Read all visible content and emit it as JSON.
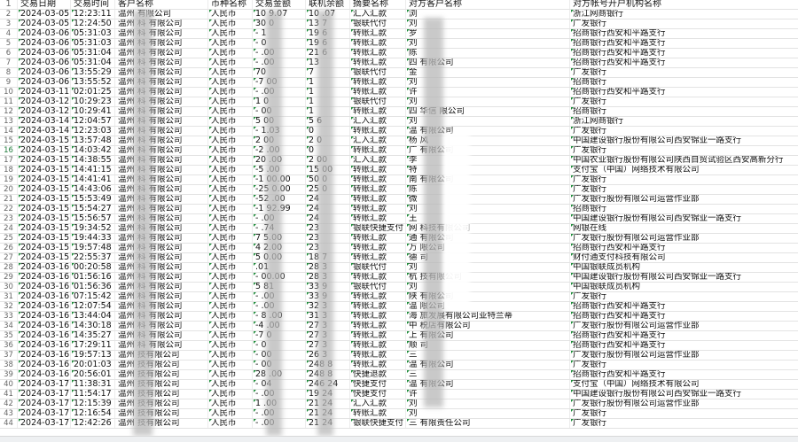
{
  "columns": [
    "",
    "交易日期",
    "交易时间",
    "客户名称",
    "币种名称",
    "交易金额",
    "联机余额",
    "摘要名称",
    "对方客户名称",
    "对方帐号开户机构名称"
  ],
  "header_row_number": "1",
  "selected_row": "16",
  "rows": [
    [
      "2",
      "2024-03-05",
      "12:23:11",
      "温州    有限公司",
      "人民币",
      "10   9.07",
      "10   .07",
      "汇入汇款",
      "浏",
      "浙江网商银行"
    ],
    [
      "3",
      "2024-03-05",
      "12:24:50",
      "温州   科 有限公司",
      "人民币",
      "30    0",
      "13   7",
      "银联代付",
      "刘",
      "广发银行"
    ],
    [
      "4",
      "2024-03-06",
      "05:31:03",
      "温州   科 有限公司",
      "人民币",
      "-    1",
      "19   6",
      "转账汇款",
      "罗",
      "招商银行西安和平路支行"
    ],
    [
      "5",
      "2024-03-06",
      "05:31:03",
      "温州   科 有限公司",
      "人民币",
      "-    0",
      "19   6",
      "转账汇款",
      "刘",
      "招商银行西安和平路支行"
    ],
    [
      "6",
      "2024-03-06",
      "05:31:04",
      "温州   科 有限公司",
      "人民币",
      "-   .00",
      "21   6",
      "转账汇款",
      "陈",
      "招商银行西安和平路支行"
    ],
    [
      "7",
      "2024-03-06",
      "05:31:04",
      "温州   科 有限公司",
      "人民币",
      "-    .00",
      "13",
      "转账汇款",
      "四       有限公司",
      "招商银行西安和平路支行"
    ],
    [
      "8",
      "2024-03-06",
      "13:55:29",
      "温州   科 有限公司",
      "人民币",
      "70",
      "7",
      "银联代付",
      "金",
      "广发银行"
    ],
    [
      "9",
      "2024-03-06",
      "13:55:52",
      "温州   科 有限公司",
      "人民币",
      "-7   00",
      "1",
      "转账汇款",
      "刘",
      "招商银行"
    ],
    [
      "10",
      "2024-03-11",
      "02:01:25",
      "温州   科 有限公司",
      "人民币",
      "-    .00",
      "1",
      "转账汇款",
      "许",
      "招商银行西安和平路支行"
    ],
    [
      "11",
      "2024-03-12",
      "10:29:23",
      "温州   科 有限公司",
      "人民币",
      "1    0",
      "1",
      "银联代付",
      "刘",
      "广发银行"
    ],
    [
      "12",
      "2024-03-12",
      "10:29:41",
      "温州   科 有限公司",
      "人民币",
      "-    00",
      "1",
      "转账汇款",
      "四 华信       限公司",
      "招商银行"
    ],
    [
      "13",
      "2024-03-14",
      "12:04:57",
      "温州   科 有限公司",
      "人民币",
      "5    00",
      "5    6",
      "汇入汇款",
      "刘",
      "浙江网商银行"
    ],
    [
      "14",
      "2024-03-14",
      "12:23:03",
      "温州   科 有限公司",
      "人民币",
      "-    1.03",
      "0",
      "转账汇款",
      "温       有限公司",
      "广发银行"
    ],
    [
      "15",
      "2024-03-15",
      "13:57:48",
      "温州   科 有限公司",
      "人民币",
      "2    00",
      "2    0",
      "汇入汇款",
      "杨 风",
      "中国建设银行股份有限公司西安锦业一路支行"
    ],
    [
      "16",
      "2024-03-15",
      "14:03:42",
      "温州   科 有限公司",
      "人民币",
      "-2   .00",
      "0",
      "转账汇款",
      "广      有限公司",
      "广发银行"
    ],
    [
      "17",
      "2024-03-15",
      "14:38:55",
      "温州   科 有限公司",
      "人民币",
      "20   .00",
      "2    00",
      "汇入汇款",
      "李",
      "中国农业银行股份有限公司陕西自贸试验区西安高新分行"
    ],
    [
      "18",
      "2024-03-15",
      "14:41:15",
      "温州   科 有限公司",
      "人民币",
      "-5   .00",
      "15   00",
      "转账汇款",
      "特",
      "支付宝（中国）网络技术有限公司"
    ],
    [
      "19",
      "2024-03-15",
      "14:41:41",
      "温州   科 有限公司",
      "人民币",
      "-1   00.00",
      "50   0",
      "转账汇款",
      "南      有限公司",
      "广发银行"
    ],
    [
      "20",
      "2024-03-15",
      "14:43:06",
      "温州   科 有限公司",
      "人民币",
      "-25  0.00",
      "25   0",
      "转账汇款",
      "陈",
      "广发银行"
    ],
    [
      "21",
      "2024-03-15",
      "15:53:49",
      "温州   科 有限公司",
      "人民币",
      "-52  .00",
      "24",
      "转账汇款",
      "微",
      "广发银行股份有限公司运营作业部"
    ],
    [
      "22",
      "2024-03-15",
      "15:54:27",
      "温州   科 有限公司",
      "人民币",
      "-1  92.99",
      "24",
      "转账汇款",
      "刘",
      "招商银行"
    ],
    [
      "23",
      "2024-03-15",
      "15:56:57",
      "温州   科 有限公司",
      "人民币",
      "-   .00",
      "24",
      "转账汇款",
      "王",
      "中国建设银行股份有限公司西安锦业一路支行"
    ],
    [
      "24",
      "2024-03-15",
      "19:34:52",
      "温州   科 有限公司",
      "人民币",
      "-   .74",
      "23",
      "银联快捷支付",
      "网       科技有限公司",
      "网银在线"
    ],
    [
      "25",
      "2024-03-15",
      "19:44:33",
      "温州   科 有限公司",
      "人民币",
      "7 5.00",
      "23",
      "转账汇款",
      "通       有限公司",
      "广发银行股份有限公司运营作业部"
    ],
    [
      "26",
      "2024-03-15",
      "19:57:48",
      "温州   科 有限公司",
      "人民币",
      "4 2.00",
      "23",
      "转账汇款",
      "万       限公司",
      "招商银行西安和平路支行"
    ],
    [
      "27",
      "2024-03-15",
      "22:55:37",
      "温州   科 有限公司",
      "人民币",
      "5  0.00",
      "18   7",
      "转账汇款",
      "德     司",
      "财付通支付科技有限公司"
    ],
    [
      "28",
      "2024-03-16",
      "00:20:58",
      "温州   科 有限公司",
      "人民币",
      "   .01",
      "28   3",
      "银联代付",
      "刘",
      "中国银联成员机构"
    ],
    [
      "29",
      "2024-03-16",
      "01:56:16",
      "温州   科 有限公司",
      "人民币",
      "-  00.00",
      "28   3",
      "转账汇款",
      "杭   技有限公司",
      "中国建设银行股份有限公司西安锦业一路支行"
    ],
    [
      "30",
      "2024-03-16",
      "01:56:36",
      "温州   科 有限公司",
      "人民币",
      "5   81",
      "33   9",
      "银联代付",
      "刘",
      "中国银联成员机构"
    ],
    [
      "31",
      "2024-03-16",
      "07:15:42",
      "温州   科 有限公司",
      "人民币",
      "-  .00",
      "33   9",
      "转账汇款",
      "陕       有限公司",
      "广发银行"
    ],
    [
      "32",
      "2024-03-16",
      "12:07:54",
      "温州   科 有限公司",
      "人民币",
      "-   .00",
      "32   3",
      "转账汇款",
      "温       限公司",
      "招商银行西安和平路支行"
    ],
    [
      "33",
      "2024-03-16",
      "13:44:04",
      "温州   科 有限公司",
      "人民币",
      "- 8 .00",
      "31   3",
      "转账汇款",
      "海       旅发展有限公司亚特兰蒂",
      "招商银行西安和平路支行"
    ],
    [
      "34",
      "2024-03-16",
      "14:30:18",
      "温州   科 有限公司",
      "人民币",
      "-4  .00",
      "27   3",
      "转账汇款",
      "中       税店有限公司",
      "广发银行股份有限公司运营作业部"
    ],
    [
      "35",
      "2024-03-16",
      "14:35:27",
      "温州   科 有限公司",
      "人民币",
      "-7   0",
      "27   3",
      "转账汇款",
      "上       有限公司",
      "招商银行西安和平路支行"
    ],
    [
      "36",
      "2024-03-16",
      "17:29:11",
      "温州   科 有限公司",
      "人民币",
      "-    0",
      "27   3",
      "转账汇款",
      "顺     司",
      "招商银行西安和平路支行"
    ],
    [
      "37",
      "2024-03-16",
      "19:57:13",
      "温州   技有限公司",
      "人民币",
      "-    00",
      "26   3",
      "转账汇款",
      "三",
      "广发银行股份有限公司运营作业部"
    ],
    [
      "38",
      "2024-03-16",
      "20:01:03",
      "温州   技有限公司",
      "人民币",
      "-    00",
      "248  8",
      "转账汇款",
      "温       有限公司",
      "广发银行"
    ],
    [
      "39",
      "2024-03-16",
      "20:56:01",
      "温州   技有限公司",
      "人民币",
      "28   .00",
      "248  8",
      "快捷退款",
      "三",
      "招商银行西安和平路支行"
    ],
    [
      "40",
      "2024-03-17",
      "11:38:31",
      "温州   技有限公司",
      "人民币",
      "-    04",
      "246  24",
      "快捷支付",
      "温       有限公司",
      "支付宝（中国）网络技术有限公司"
    ],
    [
      "41",
      "2024-03-17",
      "11:54:17",
      "温州   技有限公司",
      "人民币",
      "-    .00",
      "19   24",
      "快捷支付",
      "许",
      "中国建设银行股份有限公司西安锦业一路支行"
    ],
    [
      "42",
      "2024-03-17",
      "12:15:39",
      "温州   技有限公司",
      "人民币",
      "1    .00",
      "21   24",
      "汇入汇款",
      "刘",
      "广发银行股份有限公司运营作业部"
    ],
    [
      "43",
      "2024-03-17",
      "12:16:54",
      "温州   技有限公司",
      "人民币",
      "-    .00",
      "21   24",
      "转账汇款",
      "刘",
      "广发银行"
    ],
    [
      "44",
      "2024-03-17",
      "12:42:26",
      "温州   技有限公司",
      "人民币",
      "-    .00",
      "21   24",
      "银联快捷支付",
      "三       有限责任公司",
      "广发银行"
    ]
  ],
  "colors": {
    "text_indicator": "#1e8c3a",
    "gridline": "#e3e3e3"
  }
}
